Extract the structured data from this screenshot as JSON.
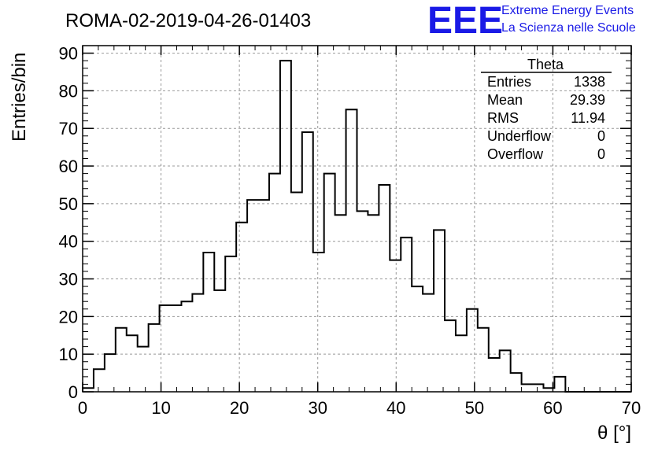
{
  "title": "ROMA-02-2019-04-26-01403",
  "logo": {
    "mark": "EEE",
    "line1": "Extreme Energy Events",
    "line2": "La Scienza nelle Scuole",
    "color": "#1a1ae6"
  },
  "stats_box": {
    "name": "Theta",
    "rows": [
      {
        "label": "Entries",
        "value": "1338"
      },
      {
        "label": "Mean",
        "value": "29.39"
      },
      {
        "label": "RMS",
        "value": "11.94"
      },
      {
        "label": "Underflow",
        "value": "0"
      },
      {
        "label": "Overflow",
        "value": "0"
      }
    ]
  },
  "chart_data": {
    "type": "bar",
    "title": "ROMA-02-2019-04-26-01403",
    "xlabel": "θ [°]",
    "ylabel": "Entries/bin",
    "xlim": [
      0,
      70
    ],
    "ylim": [
      0,
      92
    ],
    "xticks": [
      0,
      10,
      20,
      30,
      40,
      50,
      60,
      70
    ],
    "yticks": [
      0,
      10,
      20,
      30,
      40,
      50,
      60,
      70,
      80,
      90
    ],
    "grid": true,
    "bin_width": 1.4,
    "bin_edges_start": 0,
    "values": [
      1,
      6,
      10,
      17,
      15,
      12,
      18,
      23,
      23,
      24,
      26,
      37,
      27,
      36,
      45,
      51,
      51,
      58,
      88,
      53,
      69,
      37,
      58,
      47,
      75,
      48,
      47,
      55,
      35,
      41,
      28,
      26,
      43,
      19,
      15,
      22,
      17,
      9,
      11,
      5,
      2,
      2,
      1,
      4,
      0,
      0,
      0,
      0,
      0,
      0
    ]
  }
}
